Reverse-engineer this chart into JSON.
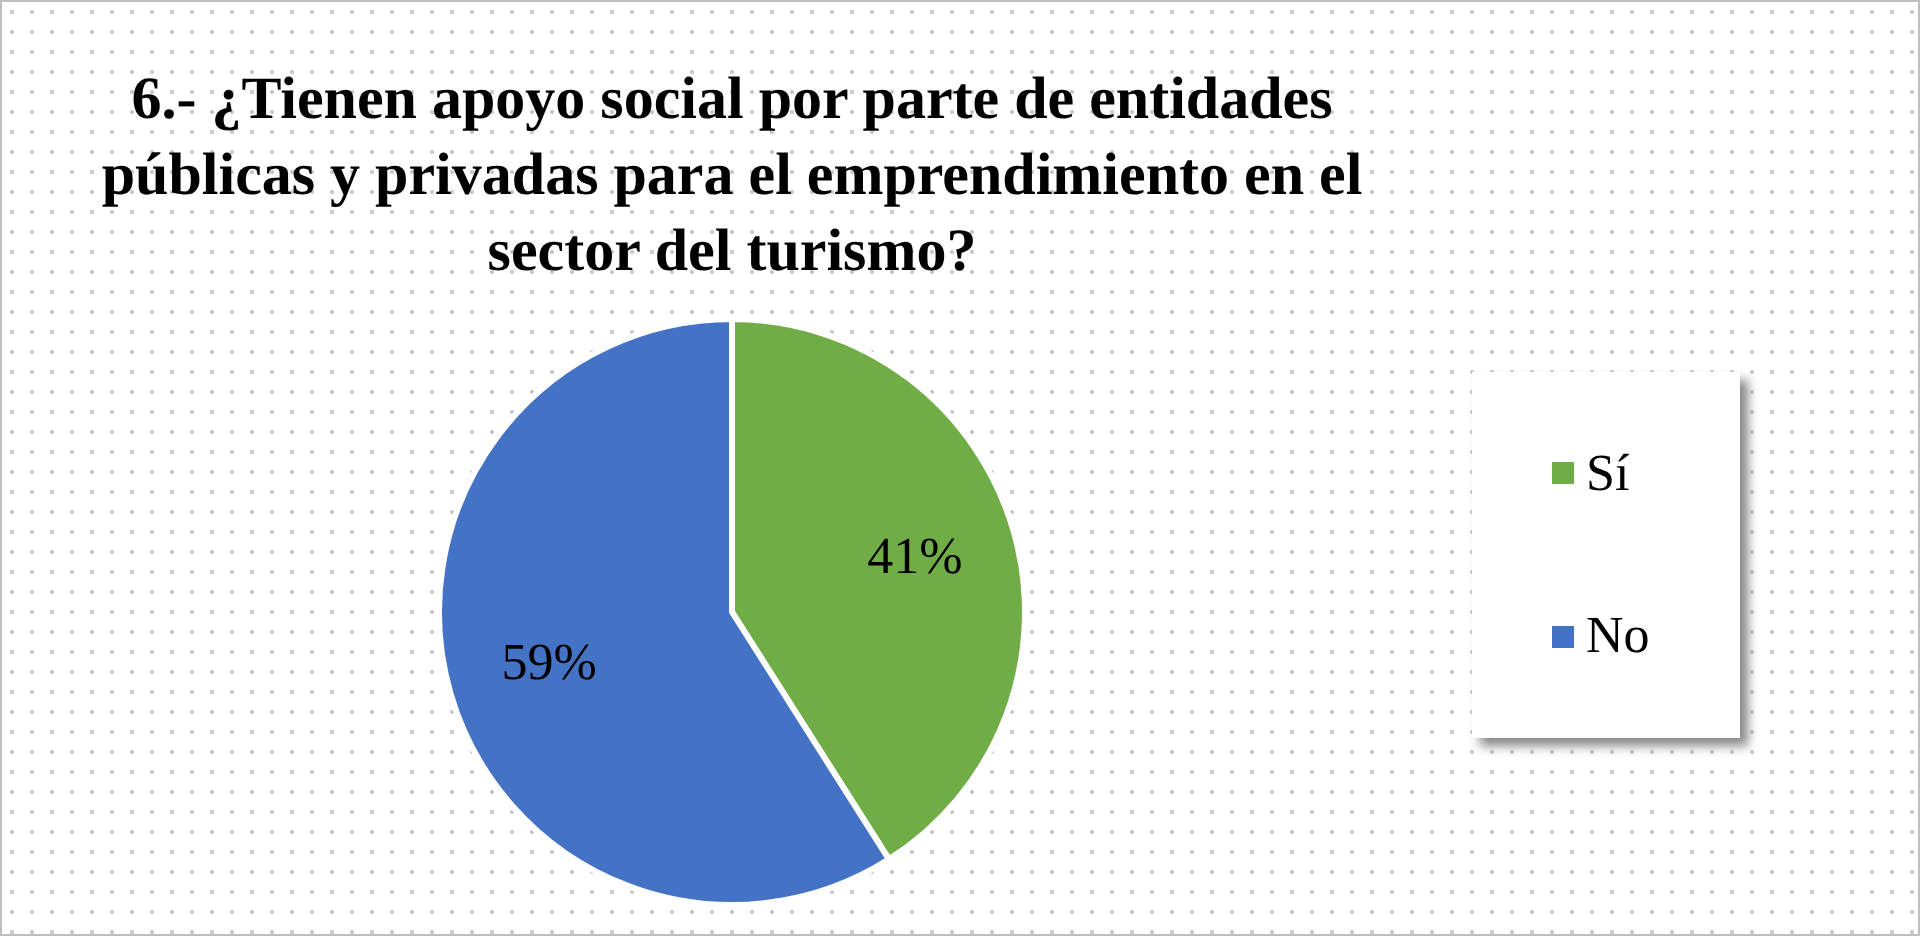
{
  "chart_data": {
    "type": "pie",
    "title": "6.- ¿Tienen apoyo social por parte de entidades públicas y privadas para el emprendimiento en el sector del turismo?",
    "categories": [
      "Sí",
      "No"
    ],
    "values": [
      41,
      59
    ],
    "colors": [
      "#70ad47",
      "#4472c4"
    ],
    "value_labels": [
      "41%",
      "59%"
    ],
    "legend": "right"
  }
}
